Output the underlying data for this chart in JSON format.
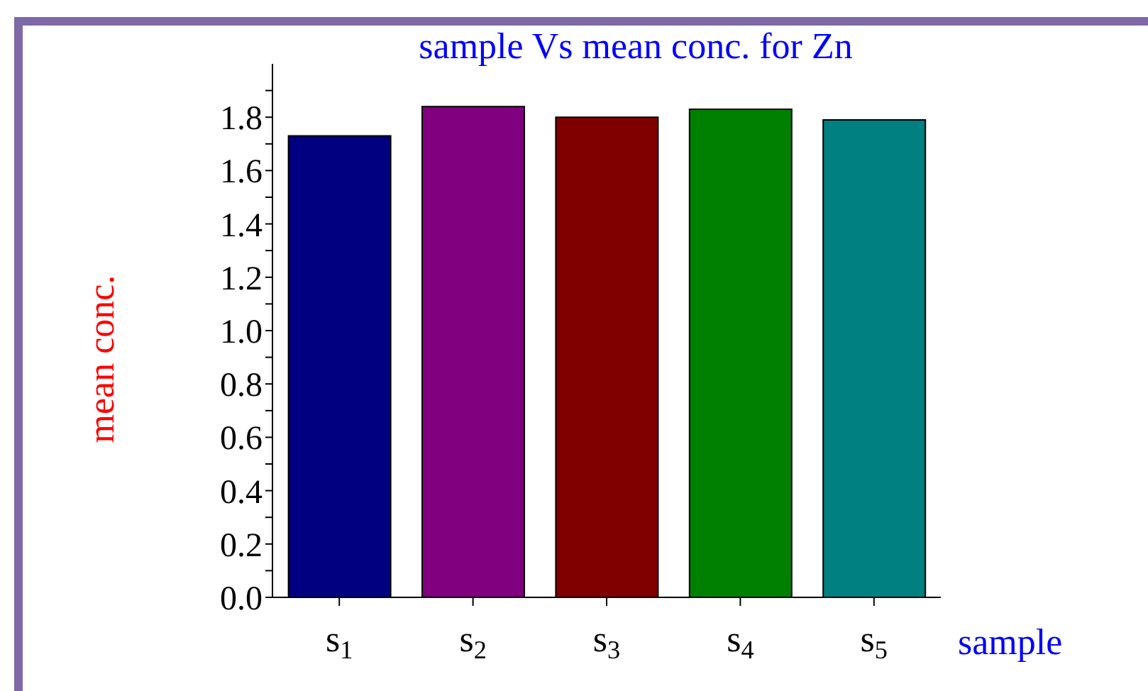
{
  "chart_data": {
    "type": "bar",
    "title": "sample Vs mean conc. for Zn",
    "xlabel": "sample",
    "ylabel": "mean conc.",
    "categories": [
      "s$_{1}$",
      "s$_{2}$",
      "s$_{3}$",
      "s$_{4}$",
      "s$_{5}$"
    ],
    "values": [
      1.73,
      1.84,
      1.8,
      1.83,
      1.79
    ],
    "colors": [
      "#000080",
      "#800080",
      "#800000",
      "#008000",
      "#008080"
    ],
    "ylim": [
      0,
      2.0
    ],
    "yticks": [
      {
        "value": 0.0,
        "label": "0.0"
      },
      {
        "value": 0.1,
        "label": null
      },
      {
        "value": 0.2,
        "label": "0.2"
      },
      {
        "value": 0.3,
        "label": null
      },
      {
        "value": 0.4,
        "label": "0.4"
      },
      {
        "value": 0.5,
        "label": null
      },
      {
        "value": 0.6,
        "label": "0.6"
      },
      {
        "value": 0.7,
        "label": null
      },
      {
        "value": 0.8,
        "label": "0.8"
      },
      {
        "value": 0.9,
        "label": null
      },
      {
        "value": 1.0,
        "label": "1.0"
      },
      {
        "value": 1.1,
        "label": null
      },
      {
        "value": 1.2,
        "label": "1.2"
      },
      {
        "value": 1.3,
        "label": null
      },
      {
        "value": 1.4,
        "label": "1.4"
      },
      {
        "value": 1.5,
        "label": null
      },
      {
        "value": 1.6,
        "label": "1.6"
      },
      {
        "value": 1.7,
        "label": null
      },
      {
        "value": 1.8,
        "label": "1.8"
      },
      {
        "value": 1.9,
        "label": null
      }
    ],
    "grid": false,
    "legend": false
  }
}
